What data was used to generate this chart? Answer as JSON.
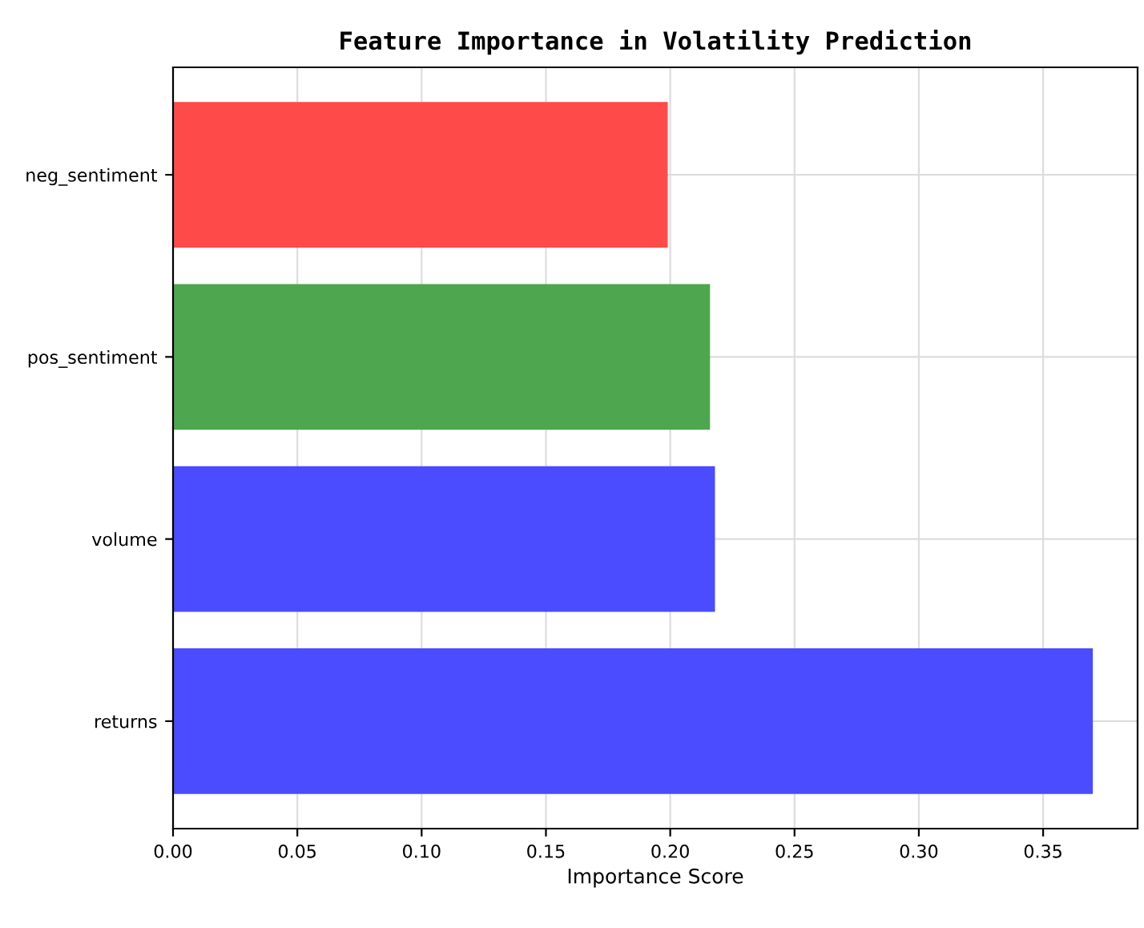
{
  "chart_data": {
    "type": "bar",
    "orientation": "horizontal",
    "title": "Feature Importance in Volatility Prediction",
    "xlabel": "Importance Score",
    "categories": [
      "neg_sentiment",
      "pos_sentiment",
      "volume",
      "returns"
    ],
    "values": [
      0.199,
      0.216,
      0.218,
      0.37
    ],
    "colors": [
      "#ff4a4a",
      "#4ea64e",
      "#4b4bff",
      "#4b4bff"
    ],
    "xlim": [
      0,
      0.388
    ],
    "xticks": [
      {
        "value": 0,
        "label": "0.00"
      },
      0.05,
      {
        "value": 0.1,
        "label": "0.10"
      },
      0.15,
      {
        "value": 0.2,
        "label": "0.20"
      },
      0.25,
      {
        "value": 0.3,
        "label": "0.30"
      },
      0.35
    ],
    "grid": true
  }
}
